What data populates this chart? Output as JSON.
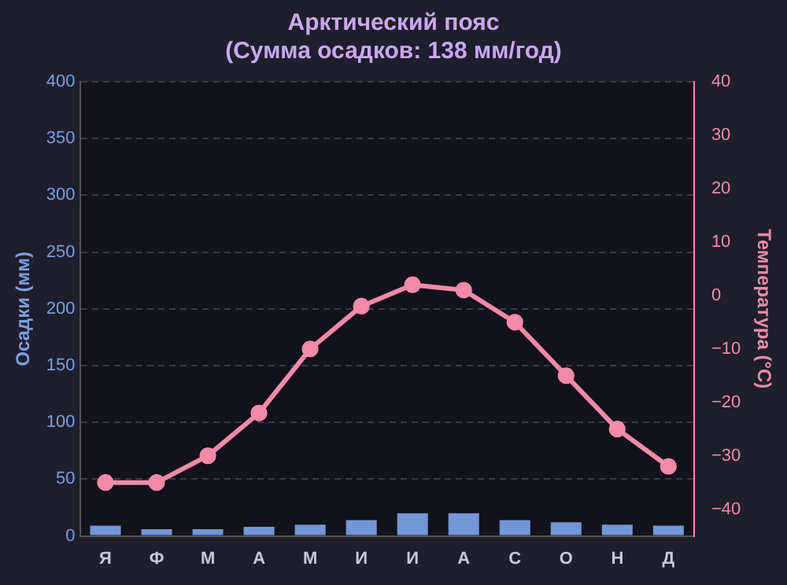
{
  "chart_data": {
    "type": "bar",
    "title": "Арктический пояс",
    "subtitle": "(Сумма осадков: 138 мм/год)",
    "ylabel": "Осадки (мм)",
    "y2label": "Температура (°C)",
    "categories": [
      "Я",
      "Ф",
      "М",
      "А",
      "М",
      "И",
      "И",
      "А",
      "С",
      "О",
      "Н",
      "Д"
    ],
    "series": [
      {
        "color": "#7396d6",
        "values": [
          9,
          6,
          6,
          8,
          10,
          14,
          20,
          20,
          14,
          12,
          10,
          9
        ]
      },
      {
        "type": "line",
        "axis": "y2",
        "color": "#f28aa8",
        "values": [
          -35,
          -35,
          -30,
          -22,
          -10,
          -2,
          2,
          1,
          -5,
          -15,
          -25,
          -32
        ]
      }
    ],
    "ylim": [
      0,
      400
    ],
    "yticks": [
      0,
      50,
      100,
      150,
      200,
      250,
      300,
      350,
      400
    ],
    "y2lim": [
      -45,
      40
    ],
    "y2ticks": [
      -40,
      -30,
      -20,
      -10,
      0,
      10,
      20,
      30,
      40
    ],
    "grid": "y",
    "legend": false,
    "marker": "circle",
    "line_style": "solid"
  }
}
